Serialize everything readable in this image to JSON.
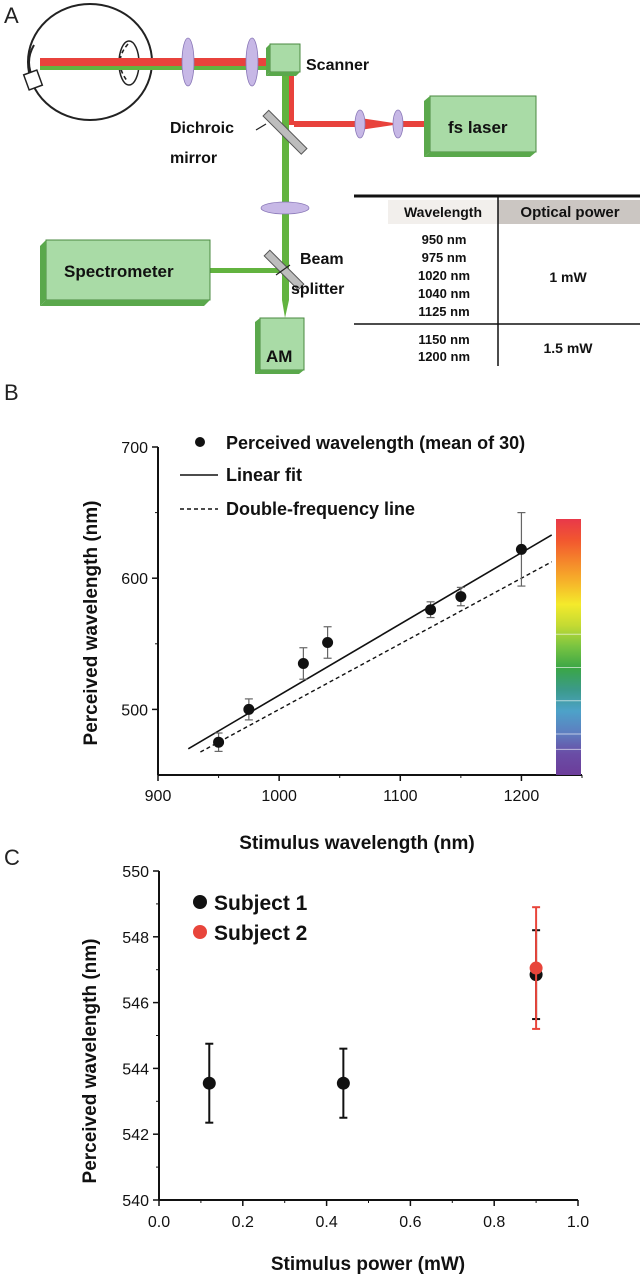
{
  "panels": {
    "A": {
      "letter": "A",
      "labels": {
        "scanner": "Scanner",
        "dichroic_1": "Dichroic",
        "dichroic_2": "mirror",
        "fs_laser": "fs laser",
        "spectrometer": "Spectrometer",
        "beam_1": "Beam",
        "beam_2": "splitter",
        "am": "AM"
      },
      "colors": {
        "laser_beam": "#e8423c",
        "green_beam": "#62b33f",
        "box_fill": "#a9dba6",
        "box_side": "#5aa84c",
        "lens": "#c7b8e6"
      },
      "table": {
        "headers": [
          "Wavelength",
          "Optical power"
        ],
        "groups": [
          {
            "wavelengths": [
              "950 nm",
              "975 nm",
              "1020 nm",
              "1040 nm",
              "1125 nm"
            ],
            "power": "1 mW"
          },
          {
            "wavelengths": [
              "1150 nm",
              "1200 nm"
            ],
            "power": "1.5 mW"
          }
        ]
      }
    },
    "B": {
      "letter": "B"
    },
    "C": {
      "letter": "C"
    }
  },
  "chart_data": [
    {
      "panel": "B",
      "type": "scatter",
      "xlabel": "Stimulus wavelength (nm)",
      "ylabel": "Perceived wavelength (nm)",
      "xlim": [
        900,
        1250
      ],
      "ylim": [
        450,
        700
      ],
      "xticks": [
        900,
        1000,
        1100,
        1200
      ],
      "yticks": [
        500,
        600,
        700
      ],
      "series": [
        {
          "name": "Perceived wavelength (mean of 30)",
          "kind": "points",
          "color": "#111111",
          "x": [
            950,
            975,
            1020,
            1040,
            1125,
            1150,
            1200
          ],
          "y": [
            475,
            500,
            535,
            551,
            576,
            586,
            622
          ],
          "err": [
            7,
            8,
            12,
            12,
            6,
            7,
            28
          ]
        },
        {
          "name": "Linear fit",
          "kind": "solid-line",
          "x": [
            925,
            1225
          ],
          "y": [
            470,
            633
          ]
        },
        {
          "name": "Double-frequency line",
          "kind": "dashed-line",
          "x": [
            935,
            1225
          ],
          "y": [
            467.5,
            612.5
          ]
        }
      ],
      "colorbar": {
        "stops": [
          "#e8384a",
          "#f2572f",
          "#f5872b",
          "#f6b62a",
          "#f4ea2b",
          "#c3da33",
          "#77c341",
          "#3aa646",
          "#3b9a8a",
          "#4da2c9",
          "#5d7fc0",
          "#6a4da6",
          "#6c3d9a"
        ]
      }
    },
    {
      "panel": "C",
      "type": "scatter",
      "xlabel": "Stimulus power (mW)",
      "ylabel": "Perceived wavelength (nm)",
      "xlim": [
        0.0,
        1.0
      ],
      "ylim": [
        540,
        550
      ],
      "xticks": [
        "0.0",
        "0.2",
        "0.4",
        "0.6",
        "0.8",
        "1.0"
      ],
      "yticks": [
        "540",
        "542",
        "544",
        "546",
        "548",
        "550"
      ],
      "series": [
        {
          "name": "Subject 1",
          "color": "#111111",
          "x": [
            0.12,
            0.44,
            0.9
          ],
          "y": [
            543.55,
            543.55,
            546.85
          ],
          "err": [
            1.2,
            1.05,
            1.35
          ]
        },
        {
          "name": "Subject 2",
          "color": "#e8453b",
          "x": [
            0.9
          ],
          "y": [
            547.05
          ],
          "err": [
            1.85
          ]
        }
      ]
    }
  ]
}
